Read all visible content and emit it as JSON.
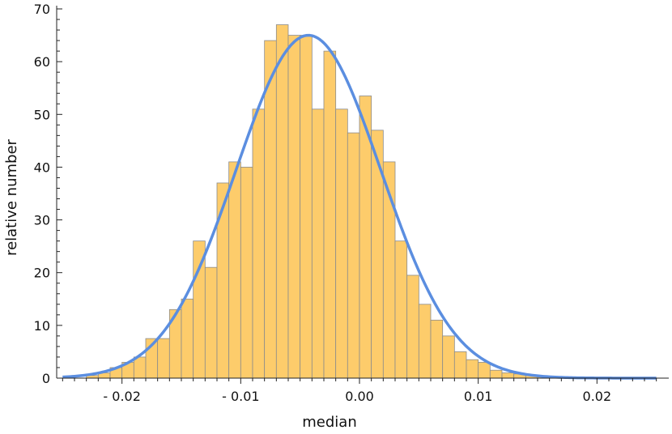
{
  "chart_data": {
    "type": "bar",
    "subtype": "histogram-with-fitted-curve",
    "title": "",
    "xlabel": "median",
    "ylabel": "relative number",
    "xlim": [
      -0.0255,
      0.0255
    ],
    "ylim": [
      0,
      70
    ],
    "grid": false,
    "legend": "none",
    "bin_width": 0.001,
    "bins": {
      "x_start": [
        -0.023,
        -0.022,
        -0.021,
        -0.02,
        -0.019,
        -0.018,
        -0.017,
        -0.016,
        -0.015,
        -0.014,
        -0.013,
        -0.012,
        -0.011,
        -0.01,
        -0.009,
        -0.008,
        -0.007,
        -0.006,
        -0.005,
        -0.004,
        -0.003,
        -0.002,
        -0.001,
        0.0,
        0.001,
        0.002,
        0.003,
        0.004,
        0.005,
        0.006,
        0.007,
        0.008,
        0.009,
        0.01,
        0.011,
        0.012,
        0.013,
        0.014,
        0.015,
        0.016
      ],
      "values": [
        0.5,
        1.0,
        2.0,
        3.0,
        4.0,
        7.5,
        7.5,
        13.0,
        15.0,
        26.0,
        21.0,
        37.0,
        41.0,
        40.0,
        51.0,
        64.0,
        67.0,
        65.0,
        65.0,
        51.0,
        62.0,
        51.0,
        46.5,
        53.5,
        47.0,
        41.0,
        26.0,
        19.5,
        14.0,
        11.0,
        8.0,
        5.0,
        3.5,
        3.0,
        1.5,
        1.0,
        0.8,
        0.5,
        0.3,
        0.2
      ]
    },
    "fit_curve": {
      "type": "normal",
      "mean": -0.0043,
      "sd": 0.0061,
      "peak": 65
    },
    "x_ticks": [
      -0.02,
      -0.01,
      0.0,
      0.01,
      0.02
    ],
    "x_tick_labels": [
      "- 0.02",
      "- 0.01",
      "0.00",
      "0.01",
      "0.02"
    ],
    "y_ticks": [
      0,
      10,
      20,
      30,
      40,
      50,
      60,
      70
    ],
    "y_tick_labels": [
      "0",
      "10",
      "20",
      "30",
      "40",
      "50",
      "60",
      "70"
    ],
    "colors": {
      "bar_fill": "#fdcc6b",
      "bar_stroke": "#8c8c8c",
      "curve": "#5b8ee0",
      "axis": "#222222"
    }
  }
}
